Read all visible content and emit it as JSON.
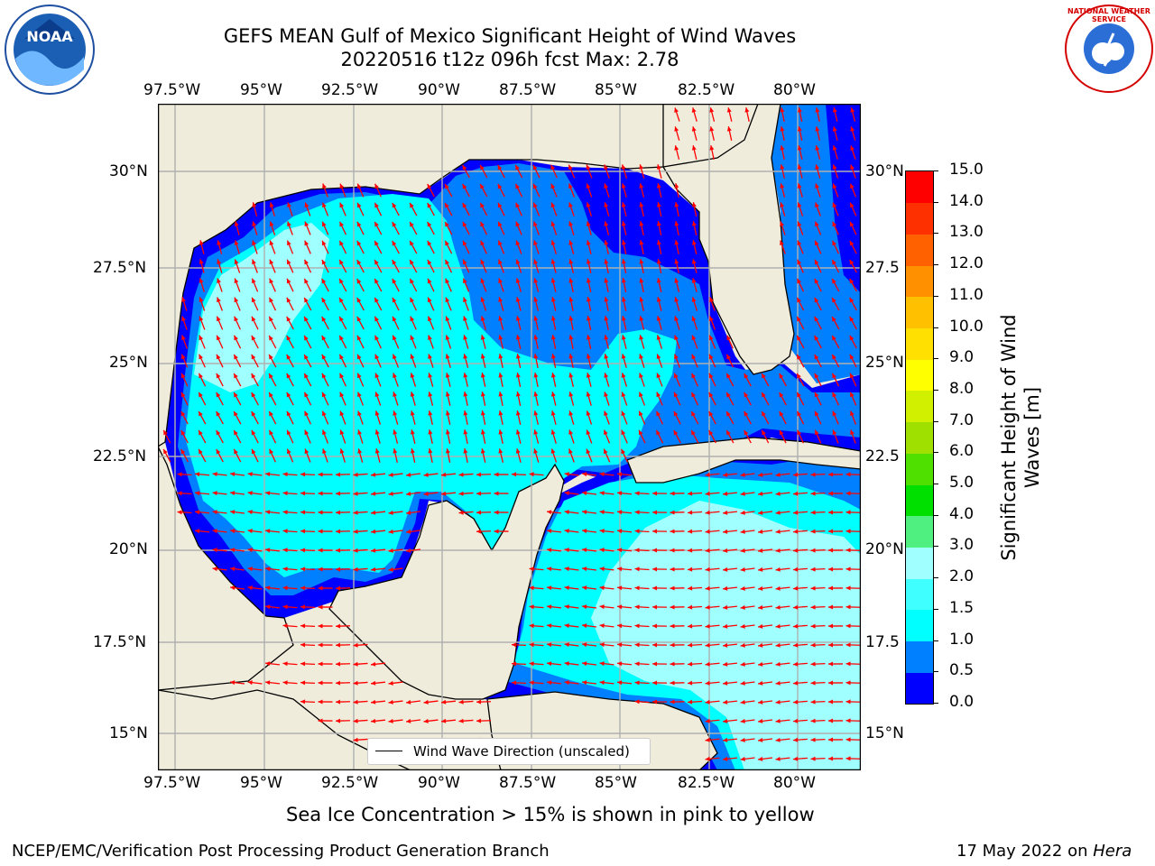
{
  "title_line1": "GEFS MEAN Gulf of Mexico Significant Height of Wind Waves",
  "title_line2": "20220516 t12z 096h fcst   Max: 2.78",
  "longitude_ticks": [
    "97.5°W",
    "95°W",
    "92.5°W",
    "90°W",
    "87.5°W",
    "85°W",
    "82.5°W",
    "80°W"
  ],
  "latitude_ticks": [
    "30°N",
    "27.5°N",
    "25°N",
    "22.5°N",
    "20°N",
    "17.5°N",
    "15°N"
  ],
  "latitude_ticks_right": [
    "30°N",
    "27.5",
    "25°N",
    "22.5",
    "20°N",
    "17.5",
    "15°N"
  ],
  "colorbar": {
    "label_line1": "Significant Height of Wind",
    "label_line2": "Waves [m]",
    "ticks": [
      "0.0",
      "0.5",
      "1.0",
      "1.5",
      "2.0",
      "3.0",
      "4.0",
      "5.0",
      "6.0",
      "7.0",
      "8.0",
      "9.0",
      "10.0",
      "11.0",
      "12.0",
      "13.0",
      "14.0",
      "15.0"
    ],
    "colors": [
      "#0000ff",
      "#0080ff",
      "#00ffff",
      "#40ffff",
      "#a0ffff",
      "#50f080",
      "#00e000",
      "#50e000",
      "#a0e000",
      "#d0f000",
      "#ffff00",
      "#ffe000",
      "#ffc000",
      "#ff9000",
      "#ff6000",
      "#ff3000",
      "#ff0000"
    ]
  },
  "legend_label": "Wind Wave Direction (unscaled)",
  "caption": "Sea Ice Concentration > 15% is shown in pink to yellow",
  "footer_left": "NCEP/EMC/Verification Post Processing Product Generation Branch",
  "footer_right_prefix": "17 May 2022 on ",
  "footer_right_host": "Hera",
  "logo_left": "NOAA",
  "logo_right": "NATIONAL WEATHER SERVICE",
  "colors": {
    "land": "#efecdc",
    "grid": "#b0b0b0",
    "arrow": "#ff0000",
    "coast": "#000000"
  }
}
